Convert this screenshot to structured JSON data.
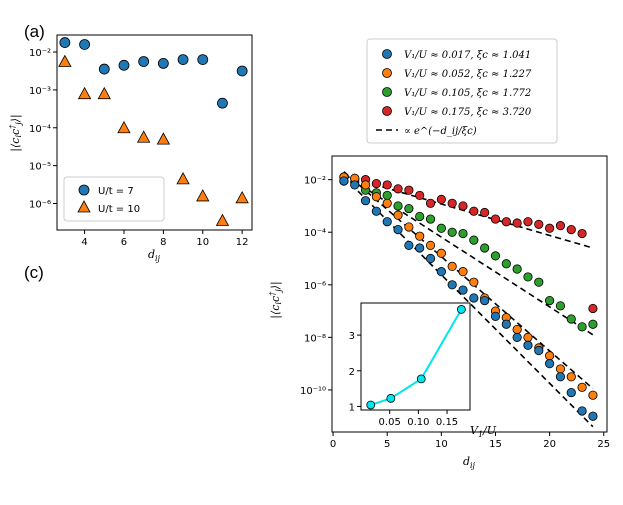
{
  "panel_labels": {
    "a": "(a)",
    "c": "(c)"
  },
  "colors": {
    "blue": "#1f77b4",
    "orange": "#ff7f0e",
    "green": "#2ca02c",
    "red": "#d62728",
    "cyan": "#00e5ee",
    "marker_edge": "#000000"
  },
  "chart_data": [
    {
      "id": "panel_a",
      "type": "scatter",
      "xscale": "linear",
      "yscale": "log",
      "xlabel": "d_ij",
      "ylabel": "|⟨c_i c_j†⟩|",
      "xlim": [
        2.6,
        12.5
      ],
      "ylim_log10": [
        -6.7,
        -1.55
      ],
      "xticks": [
        4,
        6,
        8,
        10,
        12
      ],
      "yticks": [
        {
          "exp": -6,
          "label": "10⁻⁶"
        },
        {
          "exp": -5,
          "label": "10⁻⁵"
        },
        {
          "exp": -4,
          "label": "10⁻⁴"
        },
        {
          "exp": -3,
          "label": "10⁻³"
        },
        {
          "exp": -2,
          "label": "10⁻²"
        }
      ],
      "legend_position": "lower-left",
      "series": [
        {
          "name": "U/t = 7",
          "marker": "circle",
          "color": "blue",
          "x": [
            3,
            4,
            5,
            6,
            7,
            8,
            9,
            10,
            11,
            12
          ],
          "y_log10": [
            -1.75,
            -1.8,
            -2.45,
            -2.35,
            -2.25,
            -2.3,
            -2.2,
            -2.2,
            -3.35,
            -2.5
          ]
        },
        {
          "name": "U/t = 10",
          "marker": "triangle",
          "color": "orange",
          "x": [
            3,
            4,
            5,
            6,
            7,
            8,
            9,
            10,
            11,
            12
          ],
          "y_log10": [
            -2.25,
            -3.1,
            -3.1,
            -4.0,
            -4.25,
            -4.3,
            -5.35,
            -5.8,
            -6.45,
            -5.85
          ]
        }
      ]
    },
    {
      "id": "panel_c",
      "type": "scatter",
      "xscale": "linear",
      "yscale": "log",
      "xlabel": "d_ij",
      "ylabel": "|⟨c_i c_j†⟩|",
      "xlim": [
        0,
        25
      ],
      "ylim_log10": [
        -11.6,
        -1.1
      ],
      "xticks": [
        0,
        5,
        10,
        15,
        20,
        25
      ],
      "yticks": [
        {
          "exp": -10,
          "label": "10⁻¹⁰"
        },
        {
          "exp": -8,
          "label": "10⁻⁸"
        },
        {
          "exp": -6,
          "label": "10⁻⁶"
        },
        {
          "exp": -4,
          "label": "10⁻⁴"
        },
        {
          "exp": -2,
          "label": "10⁻²"
        }
      ],
      "legend_position": "above",
      "series": [
        {
          "name": "V₁/U ≈ 0.017, ξc ≈ 1.041",
          "color": "blue",
          "xi": 1.041,
          "x": [
            1,
            2,
            3,
            4,
            5,
            6,
            7,
            8,
            9,
            10,
            11,
            12,
            13,
            14,
            15,
            16,
            17,
            18,
            19,
            20,
            21,
            22,
            23,
            24
          ],
          "y_log10": [
            -2.05,
            -2.2,
            -2.8,
            -3.2,
            -3.6,
            -3.9,
            -4.5,
            -4.6,
            -5.0,
            -5.5,
            -6.0,
            -6.2,
            -6.5,
            -6.6,
            -7.2,
            -7.5,
            -8.0,
            -8.3,
            -8.5,
            -9.0,
            -9.5,
            -10.1,
            -10.8,
            -11.0
          ]
        },
        {
          "name": "V₁/U ≈ 0.052, ξc ≈ 1.227",
          "color": "orange",
          "xi": 1.227,
          "x": [
            1,
            2,
            3,
            4,
            5,
            6,
            7,
            8,
            9,
            10,
            11,
            12,
            13,
            14,
            15,
            16,
            17,
            18,
            19,
            20,
            21,
            22,
            23,
            24
          ],
          "y_log10": [
            -1.9,
            -1.95,
            -2.2,
            -2.65,
            -2.9,
            -3.35,
            -3.8,
            -4.15,
            -4.5,
            -4.8,
            -5.3,
            -5.5,
            -5.9,
            -6.5,
            -7.0,
            -7.25,
            -7.7,
            -8.0,
            -8.4,
            -8.7,
            -9.2,
            -9.5,
            -9.9,
            -10.2
          ]
        },
        {
          "name": "V₁/U ≈ 0.105, ξc ≈ 1.772",
          "color": "green",
          "xi": 1.772,
          "x": [
            1,
            2,
            3,
            4,
            5,
            6,
            7,
            8,
            9,
            10,
            11,
            12,
            13,
            14,
            15,
            16,
            17,
            18,
            19,
            20,
            21,
            22,
            23,
            24
          ],
          "y_log10": [
            -2.05,
            -2.1,
            -2.4,
            -2.5,
            -2.6,
            -3.0,
            -3.1,
            -3.4,
            -3.5,
            -3.85,
            -4.0,
            -4.05,
            -4.3,
            -4.6,
            -4.9,
            -5.2,
            -5.4,
            -5.7,
            -5.9,
            -6.6,
            -6.8,
            -7.3,
            -7.6,
            -7.5
          ]
        },
        {
          "name": "V₁/U ≈ 0.175, ξc ≈ 3.720",
          "color": "red",
          "xi": 3.72,
          "x": [
            1,
            2,
            3,
            4,
            5,
            6,
            7,
            8,
            9,
            10,
            11,
            12,
            13,
            14,
            15,
            16,
            17,
            18,
            19,
            20,
            21,
            22,
            23,
            24
          ],
          "y_log10": [
            -1.9,
            -1.95,
            -2.0,
            -2.15,
            -2.2,
            -2.35,
            -2.4,
            -2.6,
            -2.9,
            -2.75,
            -2.9,
            -3.0,
            -3.2,
            -3.25,
            -3.5,
            -3.6,
            -3.65,
            -3.6,
            -3.7,
            -3.85,
            -3.75,
            -3.9,
            -4.05,
            -6.9
          ]
        }
      ],
      "fit_lines": {
        "label": "∝ e^(−d_ij/ξc)",
        "style": "dashed",
        "lines": [
          {
            "x": [
              1,
              24
            ],
            "y_log10": [
              -1.9,
              -11.4
            ]
          },
          {
            "x": [
              1,
              24
            ],
            "y_log10": [
              -1.7,
              -9.95
            ]
          },
          {
            "x": [
              1,
              24
            ],
            "y_log10": [
              -1.8,
              -7.9
            ]
          },
          {
            "x": [
              1,
              24
            ],
            "y_log10": [
              -1.85,
              -4.6
            ]
          }
        ]
      }
    },
    {
      "id": "panel_c_inset",
      "type": "line",
      "xlabel": "V₁/U",
      "ylabel": "",
      "xlim": [
        0.0,
        0.19
      ],
      "ylim": [
        0.9,
        3.9
      ],
      "xticks": [
        {
          "v": 0.05,
          "label": "0.05"
        },
        {
          "v": 0.1,
          "label": "0.10"
        },
        {
          "v": 0.15,
          "label": "0.15"
        }
      ],
      "yticks": [
        1,
        2,
        3
      ],
      "series": [
        {
          "name": "xi_c",
          "color": "cyan",
          "marker": "circle",
          "x": [
            0.017,
            0.052,
            0.105,
            0.175
          ],
          "y": [
            1.041,
            1.227,
            1.772,
            3.72
          ]
        }
      ]
    }
  ]
}
